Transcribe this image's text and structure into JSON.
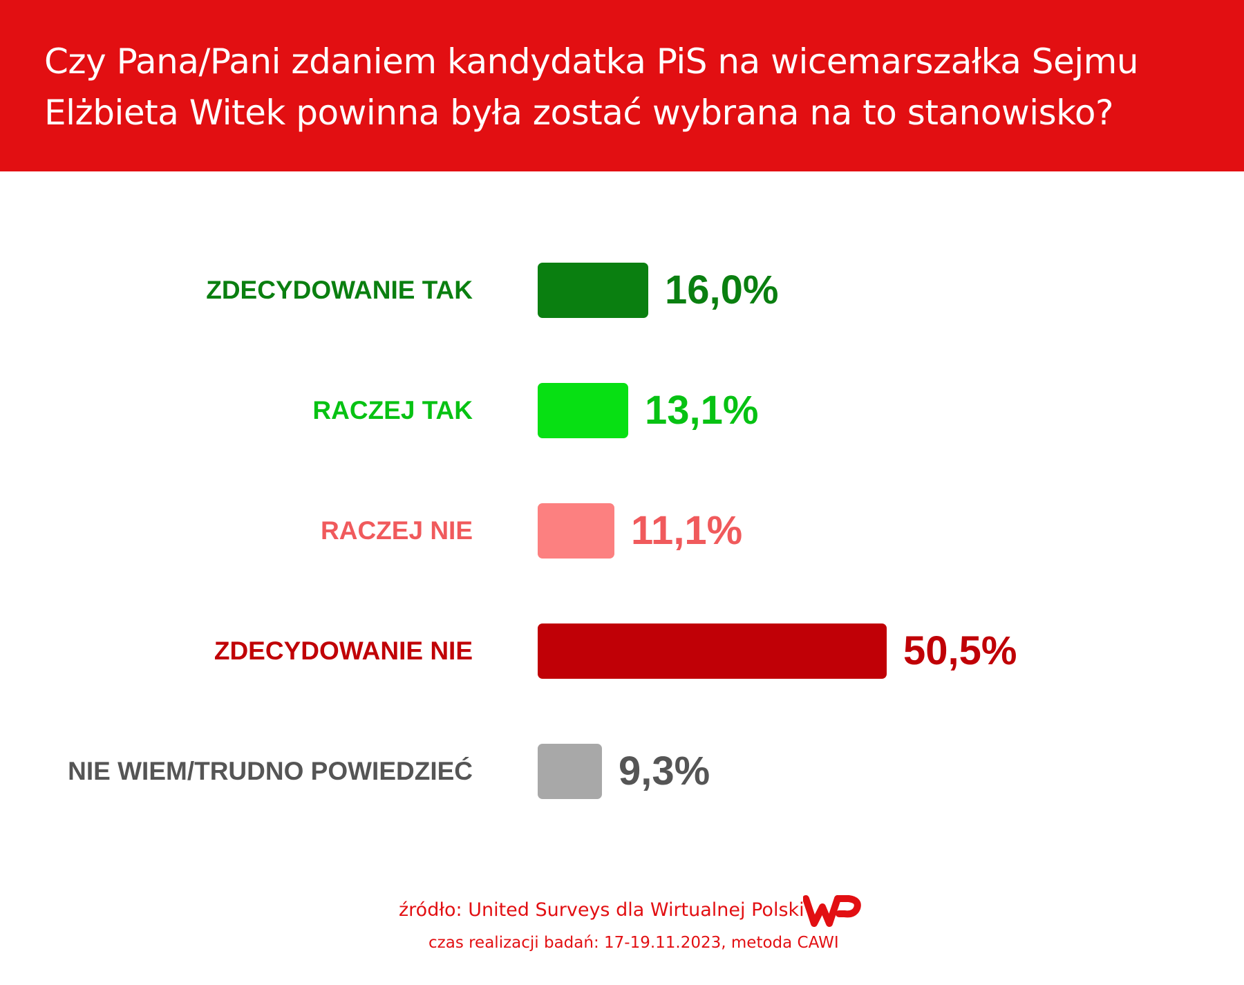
{
  "header": {
    "title": "Czy Pana/Pani zdaniem kandydatka PiS na wicemarszałka Sejmu Elżbieta Witek powinna była zostać wybrana na to stanowisko?",
    "background": "#e20f12"
  },
  "chart_data": {
    "type": "bar",
    "orientation": "horizontal",
    "title": "Czy Pana/Pani zdaniem kandydatka PiS na wicemarszałka Sejmu Elżbieta Witek powinna była zostać wybrana na to stanowisko?",
    "categories": [
      "ZDECYDOWANIE TAK",
      "RACZEJ TAK",
      "RACZEJ NIE",
      "ZDECYDOWANIE NIE",
      "NIE WIEM/TRUDNO POWIEDZIEĆ"
    ],
    "values": [
      16.0,
      13.1,
      11.1,
      50.5,
      9.3
    ],
    "value_labels": [
      "16,0%",
      "13,1%",
      "11,1%",
      "50,5%",
      "9,3%"
    ],
    "bar_colors": [
      "#0a7f10",
      "#07e013",
      "#fc8080",
      "#c00006",
      "#a8a8a8"
    ],
    "label_colors": [
      "#0a7f10",
      "#07c213",
      "#f05a5c",
      "#c00006",
      "#555555"
    ],
    "xlim": [
      0,
      100
    ],
    "grid": false,
    "legend": "none"
  },
  "footer": {
    "source": "źródło: United Surveys dla Wirtualnej Polski",
    "date": "czas realizacji badań: 17-19.11.2023, metoda CAWI",
    "logo": "WP",
    "color": "#e20f12"
  }
}
